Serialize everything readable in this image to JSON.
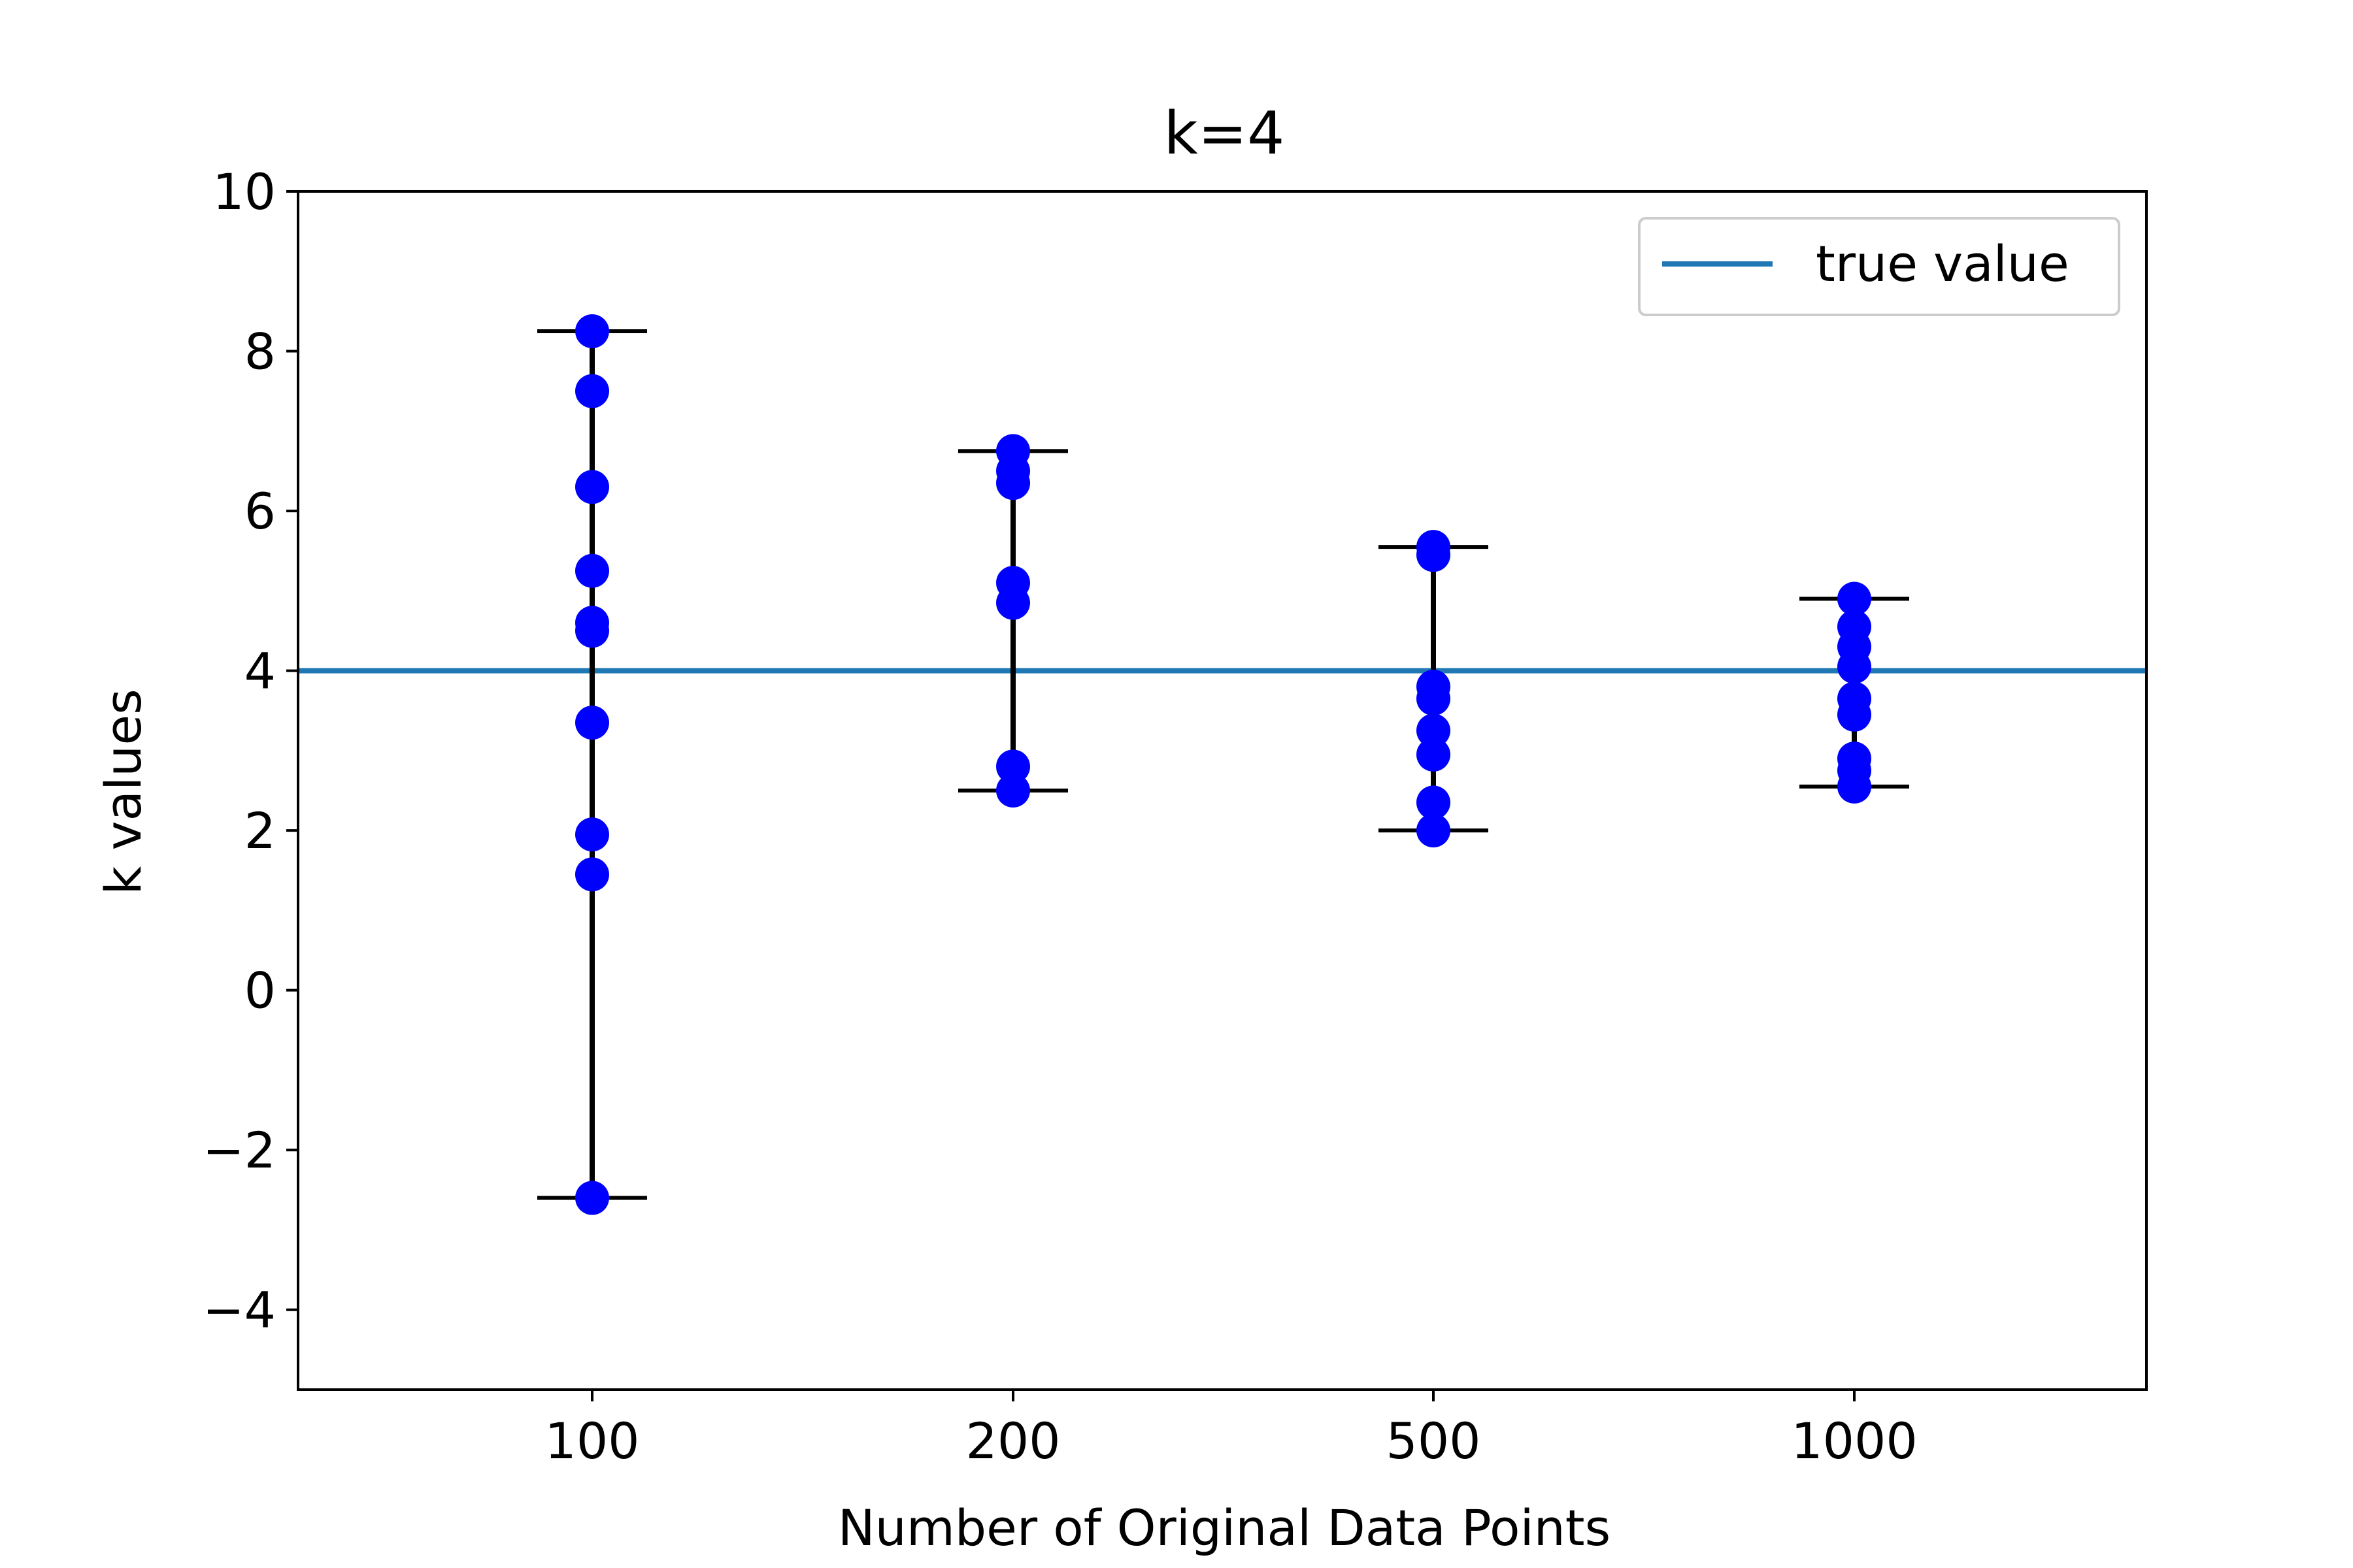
{
  "chart_data": {
    "type": "scatter",
    "title": "k=4",
    "xlabel": "Number of Original Data Points",
    "ylabel": "k values",
    "categories": [
      "100",
      "200",
      "500",
      "1000"
    ],
    "ylim": [
      -5,
      10
    ],
    "yticks": [
      -4,
      -2,
      0,
      2,
      4,
      6,
      8,
      10
    ],
    "ytick_labels": [
      "−4",
      "−2",
      "0",
      "2",
      "4",
      "6",
      "8",
      "10"
    ],
    "grid": false,
    "legend_placement": "top-right",
    "reference_line": {
      "name": "true value",
      "value": 4,
      "color": "#1f77b4"
    },
    "point_color": "#0000ff",
    "errorbar_color": "#000000",
    "groups": [
      {
        "category": "100",
        "points": [
          8.25,
          7.5,
          6.3,
          5.25,
          4.6,
          4.5,
          3.35,
          1.95,
          1.45,
          -2.6
        ],
        "range": [
          -2.6,
          8.25
        ]
      },
      {
        "category": "200",
        "points": [
          6.75,
          6.5,
          6.35,
          5.1,
          4.85,
          2.8,
          2.5
        ],
        "range": [
          2.5,
          6.75
        ]
      },
      {
        "category": "500",
        "points": [
          5.55,
          5.45,
          3.8,
          3.65,
          3.25,
          2.95,
          2.35,
          2.0
        ],
        "range": [
          2.0,
          5.55
        ]
      },
      {
        "category": "1000",
        "points": [
          4.9,
          4.55,
          4.3,
          4.05,
          3.65,
          3.45,
          2.9,
          2.75,
          2.55
        ],
        "range": [
          2.55,
          4.9
        ]
      }
    ]
  }
}
